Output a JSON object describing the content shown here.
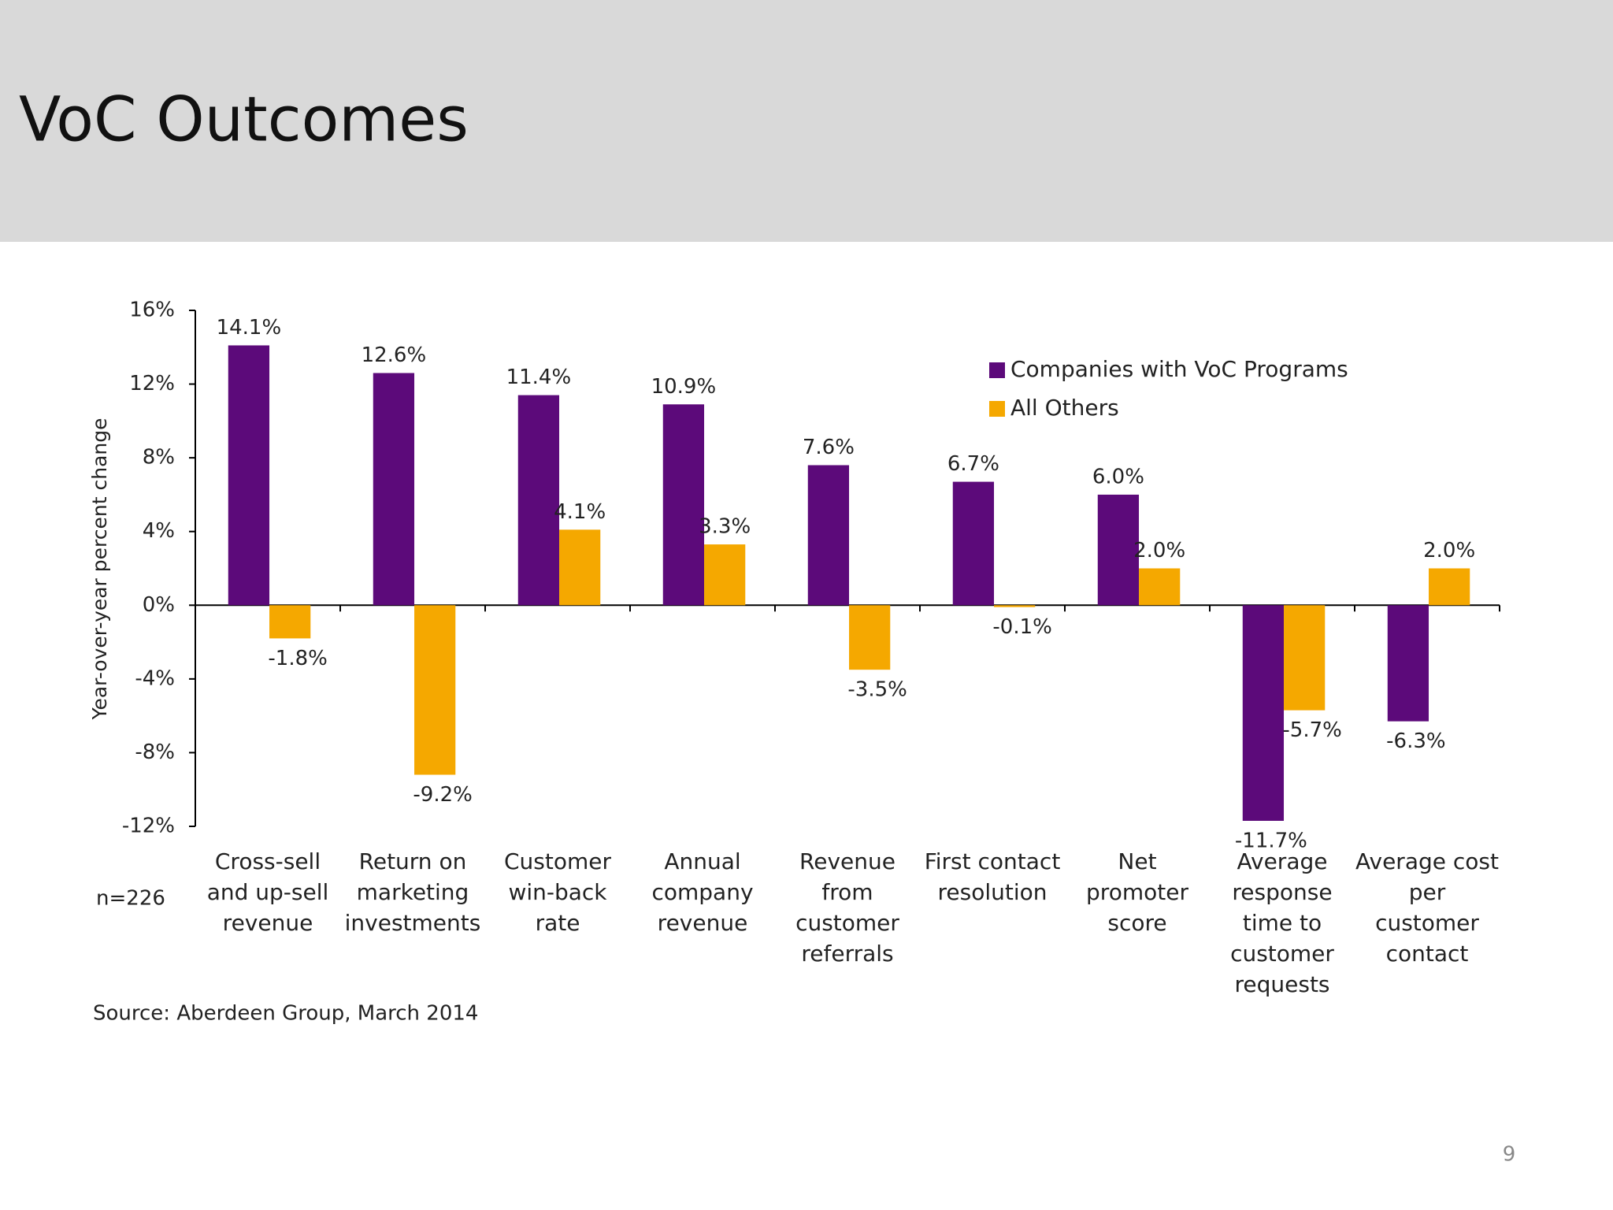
{
  "header": {
    "title": "VoC Outcomes"
  },
  "chart_data": {
    "type": "bar",
    "y_label": "Year-over-year percent change",
    "categories": [
      "Cross-sell\nand up-sell\nrevenue",
      "Return on\nmarketing\ninvestments",
      "Customer\nwin-back rate",
      "Annual\ncompany\nrevenue",
      "Revenue\nfrom\ncustomer\nreferrals",
      "First contact\nresolution",
      "Net promoter\nscore",
      "Average\nresponse\ntime to\ncustomer\nrequests",
      "Average cost\nper customer\ncontact"
    ],
    "series": [
      {
        "name": "Companies with VoC Programs",
        "color": "#5c0a7a",
        "values": [
          14.1,
          12.6,
          11.4,
          10.9,
          7.6,
          6.7,
          6.0,
          -11.7,
          -6.3
        ],
        "value_labels": [
          "14.1%",
          "12.6%",
          "11.4%",
          "10.9%",
          "7.6%",
          "6.7%",
          "6.0%",
          "-11.7%",
          "-6.3%"
        ]
      },
      {
        "name": "All Others",
        "color": "#f5a800",
        "values": [
          -1.8,
          -9.2,
          4.1,
          3.3,
          -3.5,
          -0.1,
          2.0,
          -5.7,
          2.0
        ],
        "value_labels": [
          "-1.8%",
          "-9.2%",
          "4.1%",
          "3.3%",
          "-3.5%",
          "-0.1%",
          "2.0%",
          "-5.7%",
          "2.0%"
        ]
      }
    ],
    "ylim": [
      -12,
      16
    ],
    "yticks": [
      {
        "value": -12,
        "label": "-12%"
      },
      {
        "value": -8,
        "label": "-8%"
      },
      {
        "value": -4,
        "label": "-4%"
      },
      {
        "value": 0,
        "label": "0%"
      },
      {
        "value": 4,
        "label": "4%"
      },
      {
        "value": 8,
        "label": "8%"
      },
      {
        "value": 12,
        "label": "12%"
      },
      {
        "value": 16,
        "label": "16%"
      }
    ],
    "grid": false,
    "legend": "top-right",
    "note": "n=226",
    "source": "Source: Aberdeen Group, March 2014"
  },
  "footer": {
    "page_number": "9"
  }
}
